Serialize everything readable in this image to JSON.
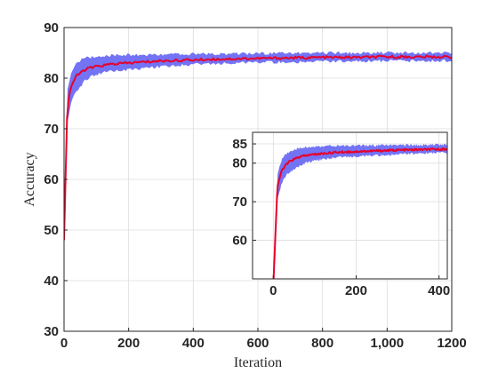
{
  "chart_data": [
    {
      "type": "line",
      "role": "main",
      "xlabel": "Iteration",
      "ylabel": "Accuracy",
      "xlim": [
        0,
        1200
      ],
      "ylim": [
        30,
        90
      ],
      "xticks": [
        0,
        200,
        400,
        600,
        800,
        1000,
        1200
      ],
      "xtick_labels": [
        "0",
        "200",
        "400",
        "600",
        "800",
        "1,000",
        "1200"
      ],
      "yticks": [
        30,
        40,
        50,
        60,
        70,
        80,
        90
      ],
      "ytick_labels": [
        "30",
        "40",
        "50",
        "60",
        "70",
        "80",
        "90"
      ],
      "grid": true,
      "series": [
        {
          "kind": "mean",
          "color": "#e8002a",
          "x": [
            0,
            10,
            20,
            30,
            40,
            50,
            60,
            70,
            80,
            100,
            120,
            150,
            200,
            250,
            300,
            350,
            400,
            450,
            500,
            600,
            700,
            800,
            900,
            1000,
            1100,
            1200
          ],
          "y": [
            48,
            74,
            78,
            79.5,
            80.5,
            81,
            81.5,
            81.8,
            82,
            82.3,
            82.5,
            82.8,
            83,
            83.2,
            83.4,
            83.5,
            83.6,
            83.7,
            83.8,
            83.9,
            84,
            84.1,
            84.1,
            84.2,
            84.2,
            84.2
          ]
        },
        {
          "kind": "band",
          "color": "#7373f5",
          "x": [
            0,
            10,
            20,
            30,
            40,
            50,
            60,
            70,
            80,
            100,
            120,
            150,
            200,
            250,
            300,
            350,
            400,
            450,
            500,
            600,
            700,
            800,
            900,
            1000,
            1100,
            1200
          ],
          "lower": [
            48,
            71,
            75,
            77,
            78,
            78.5,
            79.5,
            80,
            80.5,
            81,
            81.3,
            81.8,
            82,
            82.3,
            82.6,
            82.8,
            83,
            83.1,
            83.2,
            83.4,
            83.5,
            83.6,
            83.6,
            83.7,
            83.7,
            83.7
          ],
          "upper": [
            48,
            77,
            80.5,
            82,
            82.8,
            83.2,
            83.5,
            83.7,
            83.8,
            84,
            84.1,
            84.2,
            84.3,
            84.3,
            84.4,
            84.4,
            84.5,
            84.5,
            84.5,
            84.6,
            84.6,
            84.7,
            84.7,
            84.7,
            84.7,
            84.7
          ]
        }
      ]
    },
    {
      "type": "line",
      "role": "inset",
      "xlabel": "",
      "ylabel": "",
      "xlim": [
        -50,
        420
      ],
      "ylim": [
        50,
        88
      ],
      "xticks": [
        0,
        200,
        400
      ],
      "xtick_labels": [
        "0",
        "200",
        "400"
      ],
      "yticks": [
        60,
        70,
        80,
        85
      ],
      "ytick_labels": [
        "60",
        "70",
        "80",
        "85"
      ],
      "grid": true,
      "series": [
        {
          "kind": "mean",
          "color": "#e8002a",
          "x": [
            0,
            10,
            20,
            30,
            40,
            50,
            60,
            70,
            80,
            100,
            120,
            150,
            200,
            250,
            300,
            350,
            400,
            420
          ],
          "y": [
            48,
            74,
            78,
            79.5,
            80.5,
            81,
            81.5,
            81.8,
            82,
            82.3,
            82.5,
            82.8,
            83,
            83.2,
            83.4,
            83.5,
            83.6,
            83.6
          ]
        },
        {
          "kind": "band",
          "color": "#7373f5",
          "x": [
            0,
            10,
            20,
            30,
            40,
            50,
            60,
            70,
            80,
            100,
            120,
            150,
            200,
            250,
            300,
            350,
            400,
            420
          ],
          "lower": [
            48,
            71,
            75,
            77,
            78,
            78.5,
            79.5,
            80,
            80.5,
            81,
            81.3,
            81.8,
            82,
            82.3,
            82.6,
            82.8,
            83,
            83
          ],
          "upper": [
            48,
            77,
            80.5,
            82,
            82.8,
            83.2,
            83.5,
            83.7,
            83.8,
            84,
            84.1,
            84.2,
            84.3,
            84.3,
            84.4,
            84.4,
            84.5,
            84.5
          ]
        }
      ]
    }
  ]
}
